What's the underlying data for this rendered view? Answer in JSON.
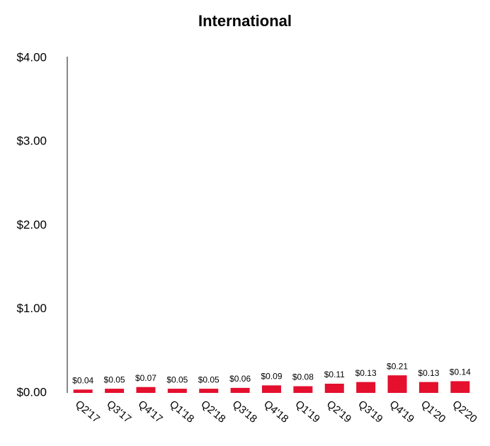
{
  "chart_data": {
    "type": "bar",
    "title": "International",
    "categories": [
      "Q2'17",
      "Q3'17",
      "Q4'17",
      "Q1'18",
      "Q2'18",
      "Q3'18",
      "Q4'18",
      "Q1'19",
      "Q2'19",
      "Q3'19",
      "Q4'19",
      "Q1'20",
      "Q2'20"
    ],
    "values": [
      0.04,
      0.05,
      0.07,
      0.05,
      0.05,
      0.06,
      0.09,
      0.08,
      0.11,
      0.13,
      0.21,
      0.13,
      0.14
    ],
    "value_labels": [
      "$0.04",
      "$0.05",
      "$0.07",
      "$0.05",
      "$0.05",
      "$0.06",
      "$0.09",
      "$0.08",
      "$0.11",
      "$0.13",
      "$0.21",
      "$0.13",
      "$0.14"
    ],
    "color": "#e4102e",
    "ylim": [
      0,
      4
    ],
    "yticks": [
      {
        "value": 0,
        "label": "$0.00"
      },
      {
        "value": 1,
        "label": "$1.00"
      },
      {
        "value": 2,
        "label": "$2.00"
      },
      {
        "value": 3,
        "label": "$3.00"
      },
      {
        "value": 4,
        "label": "$4.00"
      }
    ],
    "grid": false
  }
}
